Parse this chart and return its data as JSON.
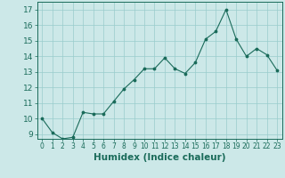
{
  "x": [
    0,
    1,
    2,
    3,
    4,
    5,
    6,
    7,
    8,
    9,
    10,
    11,
    12,
    13,
    14,
    15,
    16,
    17,
    18,
    19,
    20,
    21,
    22,
    23
  ],
  "y": [
    10.0,
    9.1,
    8.7,
    8.8,
    10.4,
    10.3,
    10.3,
    11.1,
    11.9,
    12.5,
    13.2,
    13.2,
    13.9,
    13.2,
    12.9,
    13.6,
    15.1,
    15.6,
    17.0,
    15.1,
    14.0,
    14.5,
    14.1,
    13.1
  ],
  "xlabel": "Humidex (Indice chaleur)",
  "xlim": [
    -0.5,
    23.5
  ],
  "ylim": [
    8.7,
    17.5
  ],
  "yticks": [
    9,
    10,
    11,
    12,
    13,
    14,
    15,
    16,
    17
  ],
  "xticks": [
    0,
    1,
    2,
    3,
    4,
    5,
    6,
    7,
    8,
    9,
    10,
    11,
    12,
    13,
    14,
    15,
    16,
    17,
    18,
    19,
    20,
    21,
    22,
    23
  ],
  "line_color": "#1a6b5a",
  "marker_color": "#1a6b5a",
  "bg_color": "#cce8e8",
  "grid_color": "#99cccc",
  "xlabel_fontsize": 7.5,
  "ytick_fontsize": 6.5,
  "xtick_fontsize": 5.5
}
